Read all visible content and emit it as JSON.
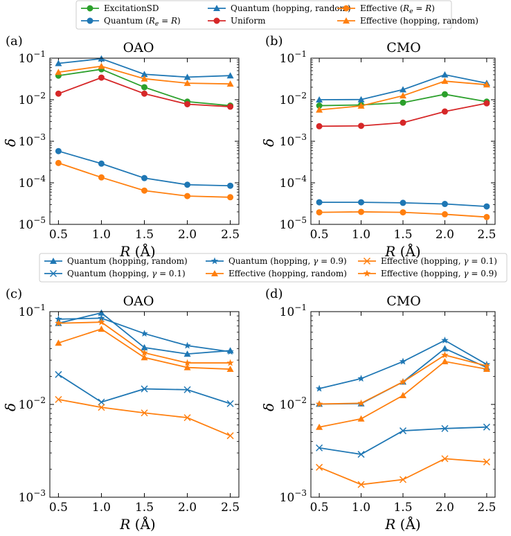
{
  "colors": {
    "blue": "#1f77b4",
    "orange": "#ff7f0e",
    "green": "#2ca02c",
    "red": "#d62728"
  },
  "legend_top": [
    {
      "label": "ExcitationSD",
      "color": "#2ca02c",
      "marker": "circle"
    },
    {
      "label": "Quantum (R_e = R)",
      "color": "#1f77b4",
      "marker": "circle"
    },
    {
      "label": "Quantum (hopping, random)",
      "color": "#1f77b4",
      "marker": "triangle"
    },
    {
      "label": "Uniform",
      "color": "#d62728",
      "marker": "circle"
    },
    {
      "label": "Effective (R_e = R)",
      "color": "#ff7f0e",
      "marker": "circle"
    },
    {
      "label": "Effective (hopping, random)",
      "color": "#ff7f0e",
      "marker": "triangle"
    }
  ],
  "legend_bottom": [
    {
      "label": "Quantum (hopping, random)",
      "color": "#1f77b4",
      "marker": "triangle"
    },
    {
      "label": "Quantum (hopping, γ = 0.1)",
      "color": "#1f77b4",
      "marker": "x"
    },
    {
      "label": "Quantum (hopping, γ = 0.9)",
      "color": "#1f77b4",
      "marker": "star"
    },
    {
      "label": "Effective (hopping, random)",
      "color": "#ff7f0e",
      "marker": "triangle"
    },
    {
      "label": "Effective (hopping, γ = 0.1)",
      "color": "#ff7f0e",
      "marker": "x"
    },
    {
      "label": "Effective (hopping, γ = 0.9)",
      "color": "#ff7f0e",
      "marker": "star"
    }
  ],
  "chart_data": [
    {
      "panel": "(a)",
      "title": "OAO",
      "type": "line",
      "xlabel": "R (Å)",
      "ylabel": "δ",
      "yscale": "log",
      "x": [
        0.5,
        1.0,
        1.5,
        2.0,
        2.5
      ],
      "xlim": [
        0.4,
        2.6
      ],
      "ylim": [
        1e-05,
        0.1
      ],
      "xticks": [
        "0.5",
        "1.0",
        "1.5",
        "2.0",
        "2.5"
      ],
      "yticks": [
        {
          "v": 1e-05,
          "m": "10",
          "e": "−5"
        },
        {
          "v": 0.0001,
          "m": "10",
          "e": "−4"
        },
        {
          "v": 0.001,
          "m": "10",
          "e": "−3"
        },
        {
          "v": 0.01,
          "m": "10",
          "e": "−2"
        },
        {
          "v": 0.1,
          "m": "10",
          "e": "−1"
        }
      ],
      "series": [
        {
          "name": "ExcitationSD",
          "color": "#2ca02c",
          "marker": "circle",
          "values": [
            0.038,
            0.054,
            0.02,
            0.009,
            0.0072
          ]
        },
        {
          "name": "Uniform",
          "color": "#d62728",
          "marker": "circle",
          "values": [
            0.014,
            0.034,
            0.014,
            0.0078,
            0.0068
          ]
        },
        {
          "name": "Quantum (R_e = R)",
          "color": "#1f77b4",
          "marker": "circle",
          "values": [
            0.00058,
            0.00029,
            0.00013,
            9e-05,
            8.5e-05
          ]
        },
        {
          "name": "Effective (R_e = R)",
          "color": "#ff7f0e",
          "marker": "circle",
          "values": [
            0.0003,
            0.000135,
            6.5e-05,
            4.8e-05,
            4.5e-05
          ]
        },
        {
          "name": "Quantum (hopping, random)",
          "color": "#1f77b4",
          "marker": "triangle",
          "values": [
            0.075,
            0.097,
            0.041,
            0.035,
            0.038
          ]
        },
        {
          "name": "Effective (hopping, random)",
          "color": "#ff7f0e",
          "marker": "triangle",
          "values": [
            0.046,
            0.064,
            0.032,
            0.025,
            0.024
          ]
        }
      ]
    },
    {
      "panel": "(b)",
      "title": "CMO",
      "type": "line",
      "xlabel": "R (Å)",
      "ylabel": "δ",
      "yscale": "log",
      "x": [
        0.5,
        1.0,
        1.5,
        2.0,
        2.5
      ],
      "xlim": [
        0.4,
        2.6
      ],
      "ylim": [
        1e-05,
        0.1
      ],
      "xticks": [
        "0.5",
        "1.0",
        "1.5",
        "2.0",
        "2.5"
      ],
      "yticks": [
        {
          "v": 1e-05,
          "m": "10",
          "e": "−5"
        },
        {
          "v": 0.0001,
          "m": "10",
          "e": "−4"
        },
        {
          "v": 0.001,
          "m": "10",
          "e": "−3"
        },
        {
          "v": 0.01,
          "m": "10",
          "e": "−2"
        },
        {
          "v": 0.1,
          "m": "10",
          "e": "−1"
        }
      ],
      "series": [
        {
          "name": "ExcitationSD",
          "color": "#2ca02c",
          "marker": "circle",
          "values": [
            0.0072,
            0.0075,
            0.0085,
            0.0135,
            0.009
          ]
        },
        {
          "name": "Uniform",
          "color": "#d62728",
          "marker": "circle",
          "values": [
            0.0023,
            0.00235,
            0.0028,
            0.0052,
            0.0082
          ]
        },
        {
          "name": "Quantum (R_e = R)",
          "color": "#1f77b4",
          "marker": "circle",
          "values": [
            3.4e-05,
            3.4e-05,
            3.3e-05,
            3.1e-05,
            2.7e-05
          ]
        },
        {
          "name": "Effective (R_e = R)",
          "color": "#ff7f0e",
          "marker": "circle",
          "values": [
            1.95e-05,
            2e-05,
            1.95e-05,
            1.75e-05,
            1.5e-05
          ]
        },
        {
          "name": "Quantum (hopping, random)",
          "color": "#1f77b4",
          "marker": "triangle",
          "values": [
            0.01,
            0.0101,
            0.0175,
            0.04,
            0.025
          ]
        },
        {
          "name": "Effective (hopping, random)",
          "color": "#ff7f0e",
          "marker": "triangle",
          "values": [
            0.0057,
            0.0071,
            0.0125,
            0.028,
            0.023
          ]
        }
      ]
    },
    {
      "panel": "(c)",
      "title": "OAO",
      "type": "line",
      "xlabel": "R (Å)",
      "ylabel": "δ",
      "yscale": "log",
      "x": [
        0.5,
        1.0,
        1.5,
        2.0,
        2.5
      ],
      "xlim": [
        0.4,
        2.6
      ],
      "ylim": [
        0.001,
        0.1
      ],
      "xticks": [
        "0.5",
        "1.0",
        "1.5",
        "2.0",
        "2.5"
      ],
      "yticks": [
        {
          "v": 0.001,
          "m": "10",
          "e": "−3"
        },
        {
          "v": 0.01,
          "m": "10",
          "e": "−2"
        },
        {
          "v": 0.1,
          "m": "10",
          "e": "−1"
        }
      ],
      "series": [
        {
          "name": "Quantum (hopping, random)",
          "color": "#1f77b4",
          "marker": "triangle",
          "values": [
            0.075,
            0.097,
            0.041,
            0.035,
            0.038
          ]
        },
        {
          "name": "Effective (hopping, random)",
          "color": "#ff7f0e",
          "marker": "triangle",
          "values": [
            0.046,
            0.065,
            0.032,
            0.025,
            0.024
          ]
        },
        {
          "name": "Quantum (hopping, γ = 0.1)",
          "color": "#1f77b4",
          "marker": "x",
          "values": [
            0.021,
            0.0106,
            0.0147,
            0.0144,
            0.0102
          ]
        },
        {
          "name": "Effective (hopping, γ = 0.1)",
          "color": "#ff7f0e",
          "marker": "x",
          "values": [
            0.0113,
            0.0093,
            0.0081,
            0.0072,
            0.0046
          ]
        },
        {
          "name": "Quantum (hopping, γ = 0.9)",
          "color": "#1f77b4",
          "marker": "star",
          "values": [
            0.083,
            0.085,
            0.058,
            0.043,
            0.037
          ]
        },
        {
          "name": "Effective (hopping, γ = 0.9)",
          "color": "#ff7f0e",
          "marker": "star",
          "values": [
            0.075,
            0.077,
            0.036,
            0.028,
            0.028
          ]
        }
      ]
    },
    {
      "panel": "(d)",
      "title": "CMO",
      "type": "line",
      "xlabel": "R (Å)",
      "ylabel": "δ",
      "yscale": "log",
      "x": [
        0.5,
        1.0,
        1.5,
        2.0,
        2.5
      ],
      "xlim": [
        0.4,
        2.6
      ],
      "ylim": [
        0.001,
        0.1
      ],
      "xticks": [
        "0.5",
        "1.0",
        "1.5",
        "2.0",
        "2.5"
      ],
      "yticks": [
        {
          "v": 0.001,
          "m": "10",
          "e": "−3"
        },
        {
          "v": 0.01,
          "m": "10",
          "e": "−2"
        },
        {
          "v": 0.1,
          "m": "10",
          "e": "−1"
        }
      ],
      "series": [
        {
          "name": "Quantum (hopping, random)",
          "color": "#1f77b4",
          "marker": "triangle",
          "values": [
            0.0101,
            0.0102,
            0.0175,
            0.04,
            0.025
          ]
        },
        {
          "name": "Effective (hopping, random)",
          "color": "#ff7f0e",
          "marker": "triangle",
          "values": [
            0.0057,
            0.007,
            0.0125,
            0.029,
            0.024
          ]
        },
        {
          "name": "Quantum (hopping, γ = 0.1)",
          "color": "#1f77b4",
          "marker": "x",
          "values": [
            0.0034,
            0.0029,
            0.0052,
            0.0055,
            0.0057
          ]
        },
        {
          "name": "Effective (hopping, γ = 0.1)",
          "color": "#ff7f0e",
          "marker": "x",
          "values": [
            0.0021,
            0.00137,
            0.00155,
            0.0026,
            0.0024
          ]
        },
        {
          "name": "Quantum (hopping, γ = 0.9)",
          "color": "#1f77b4",
          "marker": "star",
          "values": [
            0.0148,
            0.019,
            0.029,
            0.049,
            0.027
          ]
        },
        {
          "name": "Effective (hopping, γ = 0.9)",
          "color": "#ff7f0e",
          "marker": "star",
          "values": [
            0.0101,
            0.0103,
            0.0175,
            0.034,
            0.026
          ]
        }
      ]
    }
  ]
}
